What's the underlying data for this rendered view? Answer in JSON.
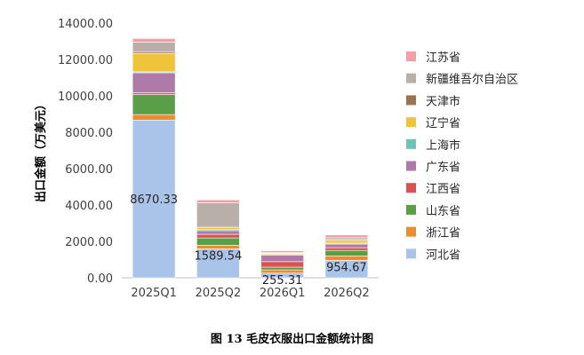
{
  "caption": "图 13 毛皮衣服出口金额统计图",
  "chart_data": {
    "type": "bar",
    "stacked": true,
    "ylabel": "出口金额（万美元）",
    "ylim": [
      0,
      14000
    ],
    "yticks": [
      "0.00",
      "2000.00",
      "4000.00",
      "6000.00",
      "8000.00",
      "10000.00",
      "12000.00",
      "14000.00"
    ],
    "grid": false,
    "legend_position": "right",
    "categories": [
      "2025Q1",
      "2025Q2",
      "2026Q1",
      "2026Q2"
    ],
    "series": [
      {
        "name": "河北省",
        "color": "#a9c4e8",
        "values": [
          8670.33,
          1589.54,
          255.31,
          954.67
        ],
        "labels": [
          "8670.33",
          "1589.54",
          "255.31",
          "954.67"
        ]
      },
      {
        "name": "浙江省",
        "color": "#ed8b2f",
        "values": [
          300,
          200,
          180,
          250
        ]
      },
      {
        "name": "山东省",
        "color": "#5a9e47",
        "values": [
          1100,
          400,
          150,
          300
        ]
      },
      {
        "name": "江西省",
        "color": "#d9534f",
        "values": [
          100,
          200,
          300,
          150
        ]
      },
      {
        "name": "广东省",
        "color": "#b07aa8",
        "values": [
          1100,
          200,
          350,
          200
        ]
      },
      {
        "name": "上海市",
        "color": "#6fc2b6",
        "values": [
          50,
          80,
          50,
          50
        ]
      },
      {
        "name": "辽宁省",
        "color": "#efc43a",
        "values": [
          1000,
          100,
          50,
          150
        ]
      },
      {
        "name": "天津市",
        "color": "#9c7351",
        "values": [
          80,
          50,
          30,
          50
        ]
      },
      {
        "name": "新疆维吾尔自治区",
        "color": "#b8b0a8",
        "values": [
          550,
          1300,
          20,
          100
        ]
      },
      {
        "name": "江苏省",
        "color": "#f2a0a8",
        "values": [
          200,
          160,
          100,
          150
        ]
      }
    ]
  }
}
